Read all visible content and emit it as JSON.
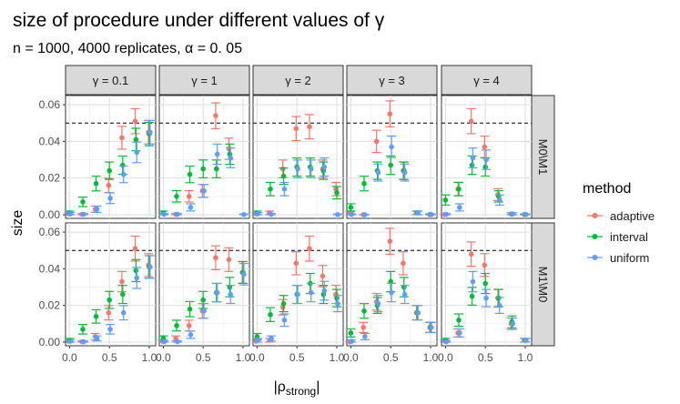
{
  "chart_data": {
    "type": "scatter",
    "subtype": "faceted point-range (errorbar) plot",
    "title": "size of procedure under different values of γ",
    "subtitle": "n = 1000, 4000 replicates, α = 0. 05",
    "xlabel": "|ρstrong|",
    "xlabel_main": "|ρ",
    "xlabel_sub": "strong",
    "xlabel_close": "|",
    "ylabel": "size",
    "xlim": [
      -0.05,
      1.08
    ],
    "ylim": [
      -0.002,
      0.065
    ],
    "x_ticks": [
      0.0,
      0.5,
      1.0
    ],
    "x_tick_labels": [
      "0.0",
      "0.5",
      "1.0"
    ],
    "y_ticks": [
      0.0,
      0.02,
      0.04,
      0.06
    ],
    "y_tick_labels": [
      "0.00",
      "0.02",
      "0.04",
      "0.06"
    ],
    "reference_line": 0.05,
    "legend": {
      "title": "method",
      "position": "right",
      "entries": [
        {
          "name": "adaptive",
          "color": "#F8766D"
        },
        {
          "name": "interval",
          "color": "#00BA38"
        },
        {
          "name": "uniform",
          "color": "#619CFF"
        }
      ]
    },
    "columns": [
      "γ = 0.1",
      "γ = 1",
      "γ = 2",
      "γ = 3",
      "γ = 4"
    ],
    "rows": [
      "M0\\M1",
      "M1\\M0"
    ],
    "x": [
      0.0,
      0.167,
      0.333,
      0.5,
      0.667,
      0.833,
      1.0
    ],
    "panels": [
      [
        {
          "adaptive": [
            0.0005,
            0.0002,
            0.003,
            0.016,
            0.042,
            0.051,
            0.045
          ],
          "interval": [
            0.001,
            0.007,
            0.017,
            0.024,
            0.027,
            0.041,
            0.044
          ],
          "uniform": [
            0.0005,
            0.0002,
            0.003,
            0.009,
            0.022,
            0.034,
            0.045
          ]
        },
        {
          "adaptive": [
            null,
            0.0002,
            0.01,
            0.013,
            0.054,
            0.036,
            null
          ],
          "interval": [
            0.001,
            0.01,
            0.022,
            0.025,
            0.025,
            0.033,
            null
          ],
          "uniform": [
            0.0002,
            0.0002,
            0.004,
            0.013,
            0.033,
            0.031,
            0.0001
          ]
        },
        {
          "adaptive": [
            0.0005,
            0.001,
            0.025,
            0.047,
            0.048,
            0.025,
            0.014
          ],
          "interval": [
            0.001,
            0.014,
            0.021,
            0.026,
            0.026,
            0.024,
            0.012
          ],
          "uniform": [
            0.0005,
            0.0002,
            0.014,
            0.025,
            0.025,
            0.026,
            0.0001
          ]
        },
        {
          "adaptive": [
            0.0007,
            0.0,
            0.04,
            0.055,
            0.024,
            0.001,
            0.0001
          ],
          "interval": [
            0.004,
            0.017,
            0.024,
            0.027,
            0.024,
            0.001,
            0.0001
          ],
          "uniform": [
            0.0001,
            0.0,
            0.023,
            0.037,
            0.023,
            0.001,
            0.0001
          ]
        },
        {
          "adaptive": [
            0.0001,
            0.014,
            0.051,
            0.037,
            0.011,
            0.0004,
            0.0001
          ],
          "interval": [
            0.008,
            0.014,
            0.027,
            0.026,
            0.01,
            0.0004,
            0.0001
          ],
          "uniform": [
            0.0002,
            0.004,
            0.031,
            0.03,
            0.008,
            0.0004,
            0.0001
          ]
        }
      ],
      [
        {
          "adaptive": [
            0.0005,
            0.0002,
            0.003,
            0.016,
            0.033,
            0.051,
            0.042
          ],
          "interval": [
            0.001,
            0.007,
            0.014,
            0.023,
            0.026,
            0.039,
            0.041
          ],
          "uniform": [
            0.0005,
            0.0002,
            0.002,
            0.007,
            0.016,
            0.035,
            0.041
          ]
        },
        {
          "adaptive": [
            0.0005,
            0.002,
            0.009,
            0.017,
            0.046,
            0.045,
            0.038
          ],
          "interval": [
            0.002,
            0.009,
            0.018,
            0.023,
            0.027,
            0.03,
            0.038
          ],
          "uniform": [
            0.0002,
            0.0002,
            0.004,
            0.017,
            0.027,
            0.026,
            0.037
          ]
        },
        {
          "adaptive": [
            0.0005,
            0.001,
            0.019,
            0.043,
            0.051,
            0.036,
            0.026
          ],
          "interval": [
            0.003,
            0.015,
            0.021,
            0.026,
            0.032,
            0.026,
            0.024
          ],
          "uniform": [
            0.001,
            0.002,
            0.012,
            0.026,
            0.027,
            0.028,
            0.021
          ]
        },
        {
          "adaptive": [
            0.0001,
            0.008,
            0.022,
            0.055,
            0.043,
            0.016,
            0.008
          ],
          "interval": [
            0.005,
            0.017,
            0.02,
            0.033,
            0.03,
            0.016,
            0.008
          ],
          "uniform": [
            0.0005,
            0.003,
            0.021,
            0.027,
            0.026,
            0.016,
            0.008
          ]
        },
        {
          "adaptive": [
            0.0005,
            0.005,
            0.048,
            0.042,
            0.024,
            0.01,
            0.001
          ],
          "interval": [
            0.001,
            0.012,
            0.025,
            0.032,
            0.024,
            0.011,
            0.001
          ],
          "uniform": [
            0.0002,
            0.005,
            0.033,
            0.024,
            0.02,
            0.01,
            0.001
          ]
        }
      ]
    ]
  }
}
